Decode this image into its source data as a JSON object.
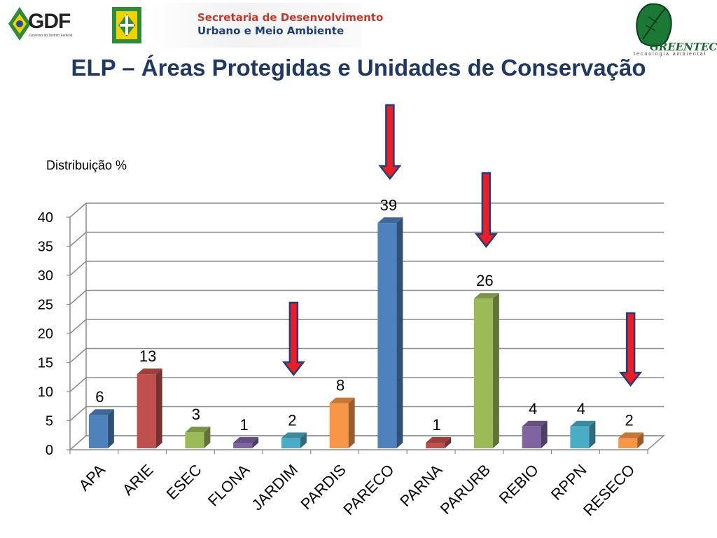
{
  "header": {
    "gdf_logo_text": "GDF",
    "gdf_logo_sub": "Governo do Distrito Federal",
    "secretaria_line1": "Secretaria de  Desenvolvimento",
    "secretaria_line2": "Urbano e Meio Ambiente",
    "greentec_name": "GREENTEC",
    "greentec_tagline": "tecnologia ambiental"
  },
  "slide_title": "ELP – Áreas Protegidas e Unidades de Conservação",
  "colors": {
    "title": "#1f3864",
    "arrow": "#ee1c24",
    "arrow_border": "#1f3f7a"
  },
  "arrows": [
    {
      "label": "PARECO"
    },
    {
      "label": "PARURB"
    },
    {
      "label": "JARDIM"
    },
    {
      "label": "RESECO"
    }
  ],
  "chart_data": {
    "type": "bar",
    "ylabel": "Distribuição %",
    "xlabel": "",
    "categories": [
      "APA",
      "ARIE",
      "ESEC",
      "FLONA",
      "JARDIM",
      "PARDIS",
      "PARECO",
      "PARNA",
      "PARURB",
      "REBIO",
      "RPPN",
      "RESECO"
    ],
    "values": [
      6,
      13,
      3,
      1,
      2,
      8,
      39,
      1,
      26,
      4,
      4,
      2
    ],
    "bar_colors": [
      "#4f81bd",
      "#c0504d",
      "#9bbb59",
      "#8064a2",
      "#4bacc6",
      "#f79646",
      "#4f81bd",
      "#c0504d",
      "#9bbb59",
      "#8064a2",
      "#4bacc6",
      "#f79646"
    ],
    "ylim": [
      0,
      40
    ],
    "yticks": [
      0,
      5,
      10,
      15,
      20,
      25,
      30,
      35,
      40
    ],
    "grid": true,
    "legend": "none",
    "data_labels": true
  }
}
